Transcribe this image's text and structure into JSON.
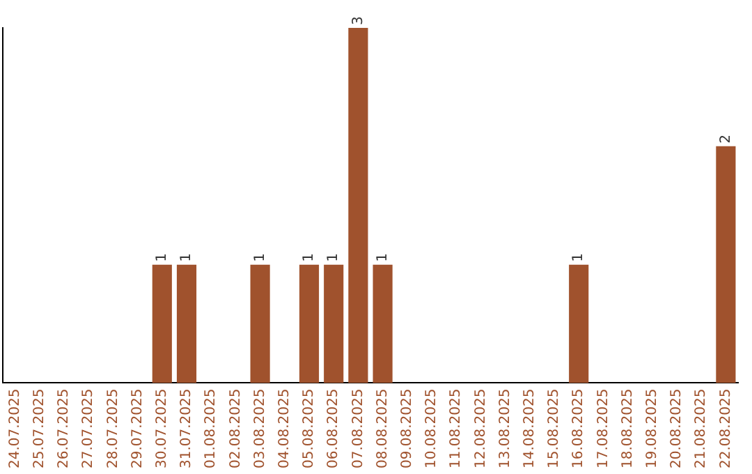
{
  "chart_data": {
    "type": "bar",
    "categories": [
      "24.07.2025",
      "25.07.2025",
      "26.07.2025",
      "27.07.2025",
      "28.07.2025",
      "29.07.2025",
      "30.07.2025",
      "31.07.2025",
      "01.08.2025",
      "02.08.2025",
      "03.08.2025",
      "04.08.2025",
      "05.08.2025",
      "06.08.2025",
      "07.08.2025",
      "08.08.2025",
      "09.08.2025",
      "10.08.2025",
      "11.08.2025",
      "12.08.2025",
      "13.08.2025",
      "14.08.2025",
      "15.08.2025",
      "16.08.2025",
      "17.08.2025",
      "18.08.2025",
      "19.08.2025",
      "20.08.2025",
      "21.08.2025",
      "22.08.2025"
    ],
    "values": [
      0,
      0,
      0,
      0,
      0,
      0,
      1,
      1,
      0,
      0,
      1,
      0,
      1,
      1,
      3,
      1,
      0,
      0,
      0,
      0,
      0,
      0,
      0,
      1,
      0,
      0,
      0,
      0,
      0,
      2
    ],
    "value_labels": [
      null,
      null,
      null,
      null,
      null,
      null,
      "1",
      "1",
      null,
      null,
      "1",
      null,
      "1",
      "1",
      "3",
      "1",
      null,
      null,
      null,
      null,
      null,
      null,
      null,
      "1",
      null,
      null,
      null,
      null,
      null,
      "2"
    ],
    "color": "#a0522d",
    "grid": false
  }
}
